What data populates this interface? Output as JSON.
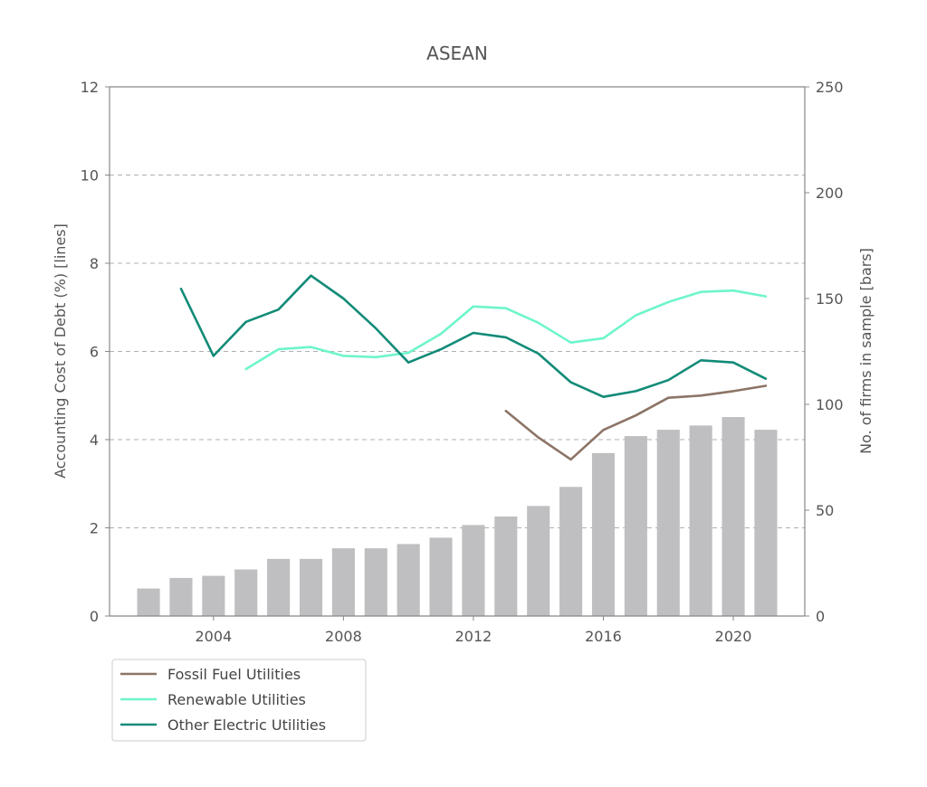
{
  "chart_data": {
    "type": "bar+line",
    "title": "ASEAN",
    "ylabel_left": "Accounting Cost of Debt (%) [lines]",
    "ylabel_right": "No. of firms in sample  [bars]",
    "ylim_left": [
      0,
      12
    ],
    "ylim_right": [
      0,
      250
    ],
    "yticks_left": [
      0,
      2,
      4,
      6,
      8,
      10,
      12
    ],
    "yticks_right": [
      0,
      50,
      100,
      150,
      200,
      250
    ],
    "xticks": [
      2004,
      2008,
      2012,
      2016,
      2020
    ],
    "xlim": [
      2000.8,
      2022.2
    ],
    "grid": "horizontal dashed",
    "legend_position": "bottom-left, below plot",
    "bar_color": "#bfbfc1",
    "bars": {
      "x": [
        2002,
        2003,
        2004,
        2005,
        2006,
        2007,
        2008,
        2009,
        2010,
        2011,
        2012,
        2013,
        2014,
        2015,
        2016,
        2017,
        2018,
        2019,
        2020,
        2021
      ],
      "values": [
        13,
        18,
        19,
        22,
        27,
        27,
        32,
        32,
        34,
        37,
        43,
        47,
        52,
        61,
        77,
        85,
        88,
        90,
        94,
        88
      ]
    },
    "series": [
      {
        "name": "Fossil Fuel Utilities",
        "color": "#8c7466",
        "x": [
          2013,
          2014,
          2015,
          2016,
          2017,
          2018,
          2019,
          2020,
          2021
        ],
        "values": [
          4.65,
          4.05,
          3.55,
          4.22,
          4.55,
          4.95,
          5.0,
          5.1,
          5.22
        ]
      },
      {
        "name": "Renewable Utilities",
        "color": "#6ef5cb",
        "x": [
          2005,
          2006,
          2007,
          2008,
          2009,
          2010,
          2011,
          2012,
          2013,
          2014,
          2015,
          2016,
          2017,
          2018,
          2019,
          2020,
          2021
        ],
        "values": [
          5.6,
          6.05,
          6.1,
          5.9,
          5.87,
          5.97,
          6.4,
          7.02,
          6.98,
          6.65,
          6.2,
          6.3,
          6.82,
          7.12,
          7.35,
          7.38,
          7.25
        ]
      },
      {
        "name": "Other Electric Utilities",
        "color": "#128b78",
        "x": [
          2003,
          2004,
          2005,
          2006,
          2007,
          2008,
          2009,
          2010,
          2011,
          2012,
          2013,
          2014,
          2015,
          2016,
          2017,
          2018,
          2019,
          2020,
          2021
        ],
        "values": [
          7.42,
          5.9,
          6.67,
          6.95,
          7.72,
          7.2,
          6.52,
          5.75,
          6.05,
          6.42,
          6.32,
          5.95,
          5.3,
          4.97,
          5.1,
          5.35,
          5.8,
          5.75,
          5.38
        ]
      }
    ]
  }
}
